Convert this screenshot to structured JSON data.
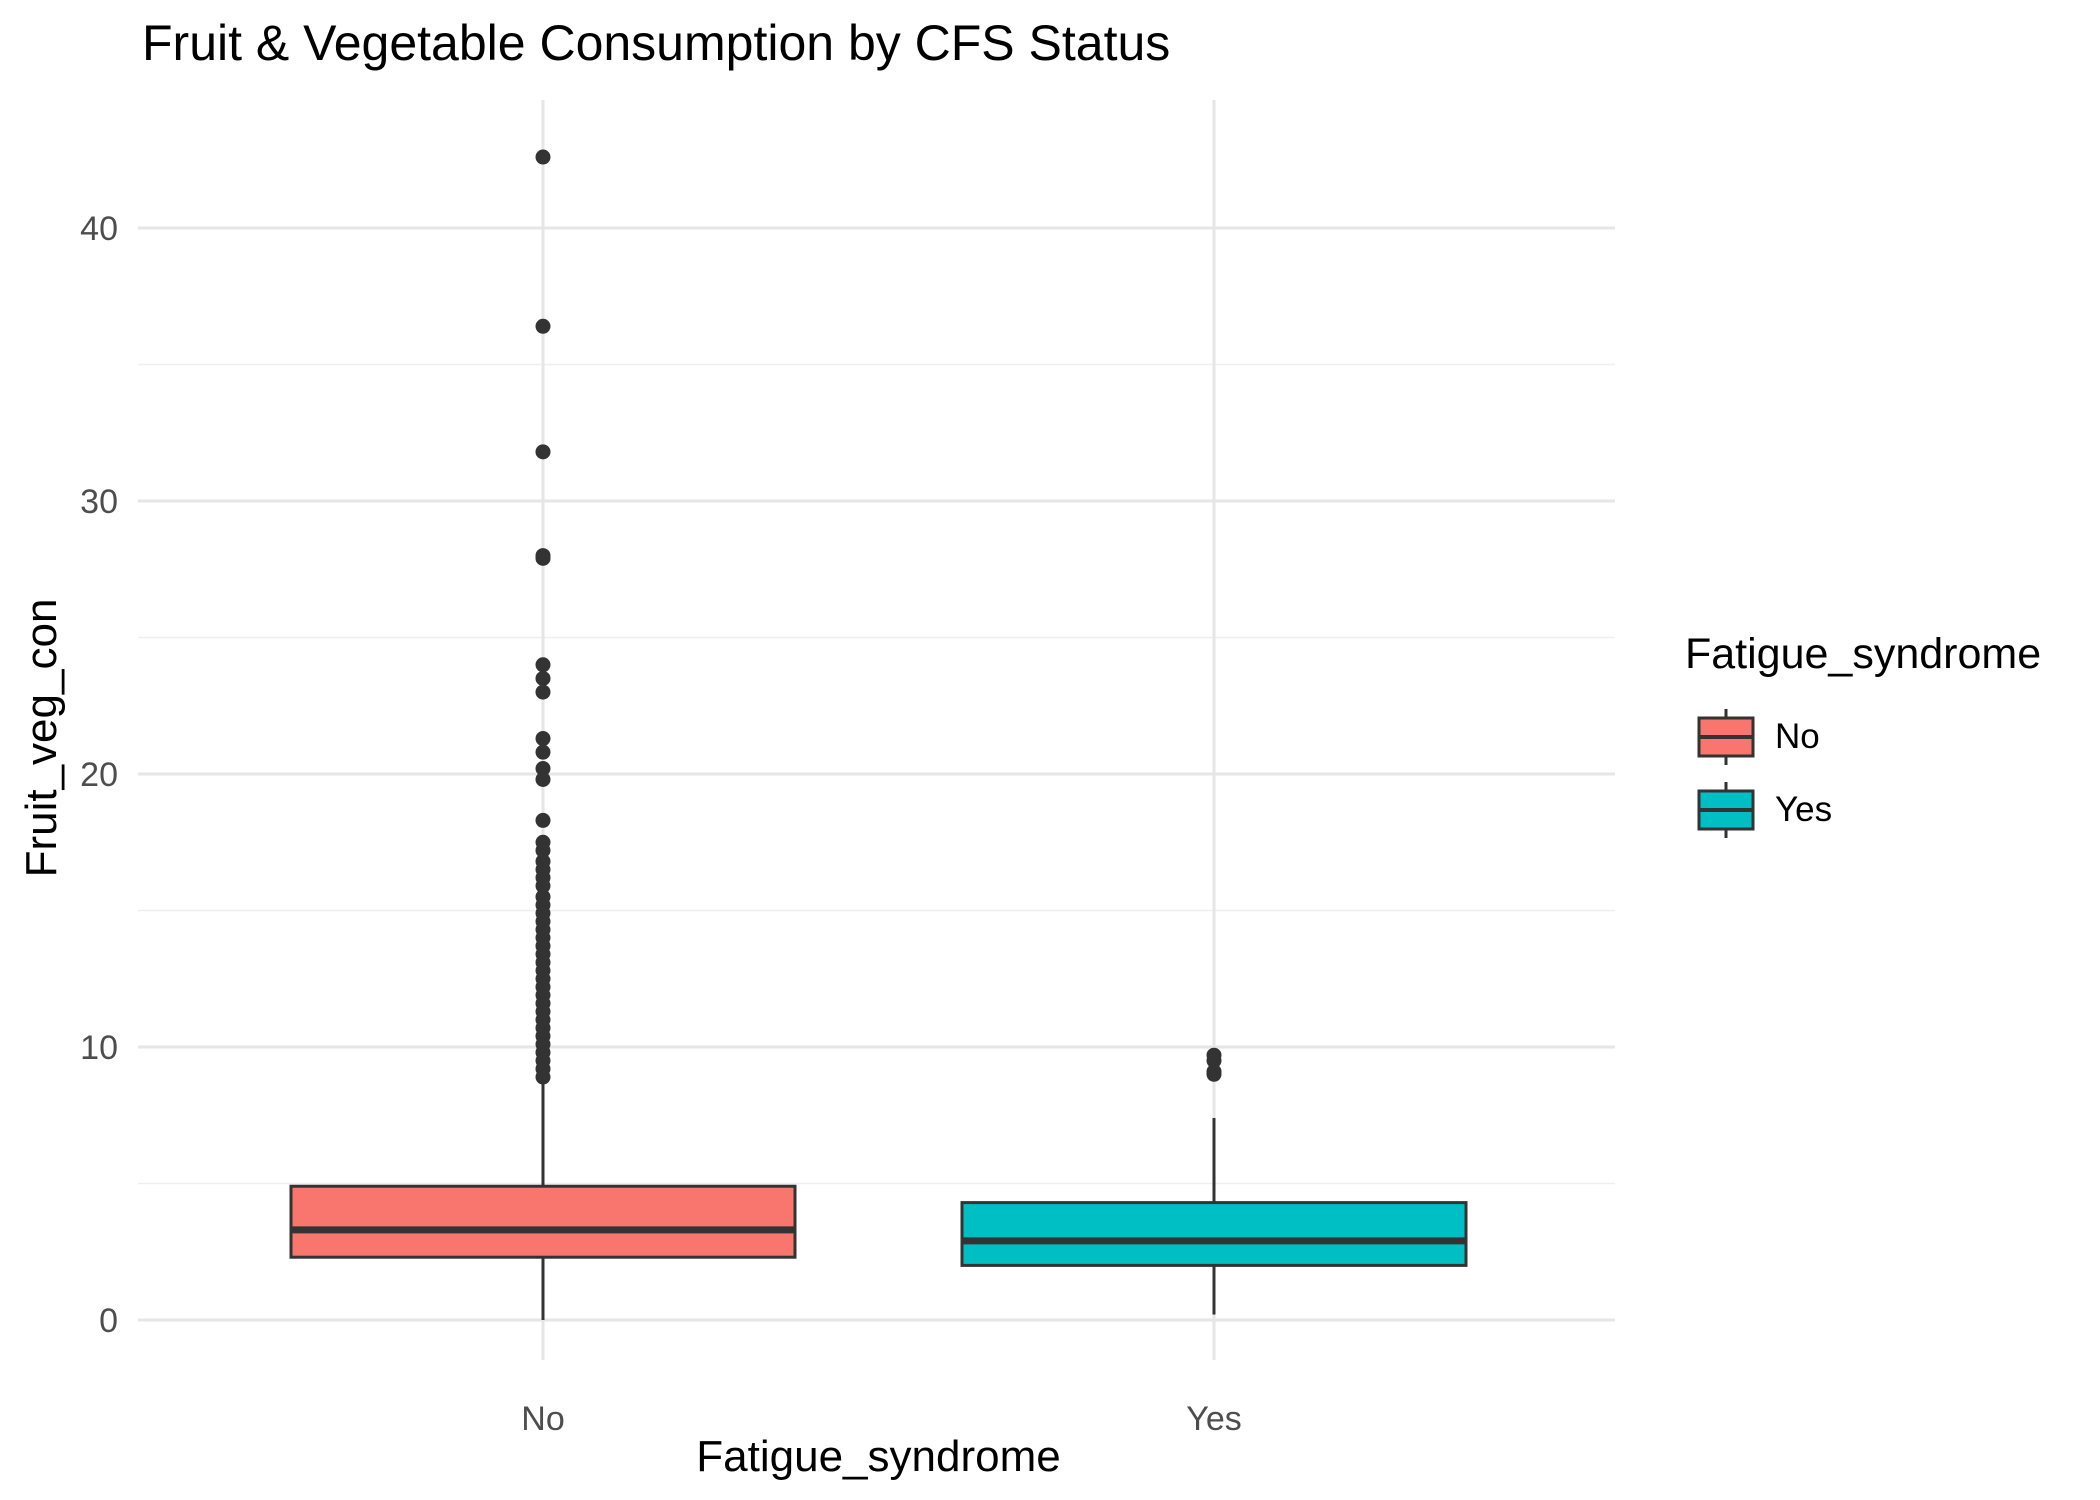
{
  "chart_data": {
    "type": "boxplot",
    "title": "Fruit & Vegetable Consumption by CFS Status",
    "xlabel": "Fatigue_syndrome",
    "ylabel": "Fruit_veg_con",
    "categories": [
      "No",
      "Yes"
    ],
    "ylim": [
      -1.5,
      44.7
    ],
    "yticks": [
      0,
      10,
      20,
      30,
      40
    ],
    "grid": true,
    "legend": {
      "title": "Fatigue_syndrome",
      "position": "right",
      "entries": [
        {
          "label": "No",
          "color": "#F8766D"
        },
        {
          "label": "Yes",
          "color": "#00BFC4"
        }
      ]
    },
    "boxes": [
      {
        "category": "No",
        "color": "#F8766D",
        "whisker_low": 0.0,
        "q1": 2.3,
        "median": 3.3,
        "q3": 4.9,
        "whisker_high": 8.8,
        "outliers": [
          42.6,
          36.4,
          31.8,
          28.0,
          27.9,
          24.0,
          23.5,
          23.0,
          21.3,
          20.8,
          20.2,
          19.8,
          18.3,
          17.5,
          17.2,
          16.8,
          16.5,
          16.2,
          15.9,
          15.5,
          15.2,
          14.9,
          14.6,
          14.3,
          14.0,
          13.7,
          13.4,
          13.1,
          12.8,
          12.5,
          12.2,
          11.9,
          11.6,
          11.3,
          11.0,
          10.7,
          10.4,
          10.1,
          9.8,
          9.5,
          9.2,
          8.9
        ]
      },
      {
        "category": "Yes",
        "color": "#00BFC4",
        "whisker_low": 0.2,
        "q1": 2.0,
        "median": 2.9,
        "q3": 4.3,
        "whisker_high": 7.4,
        "outliers": [
          9.7,
          9.5,
          9.1,
          9.0
        ]
      }
    ]
  }
}
